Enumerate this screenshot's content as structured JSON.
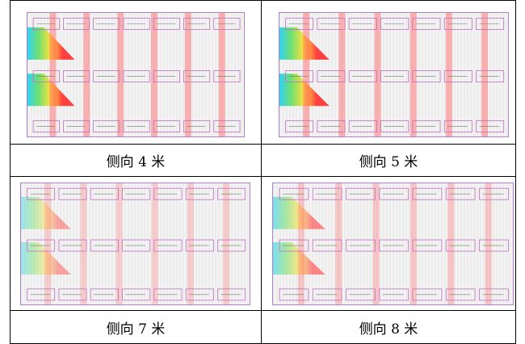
{
  "figures": [
    {
      "caption": "侧向 4 米"
    },
    {
      "caption": "侧向 5 米"
    },
    {
      "caption": "侧向 7 米"
    },
    {
      "caption": "侧向 8 米"
    }
  ]
}
